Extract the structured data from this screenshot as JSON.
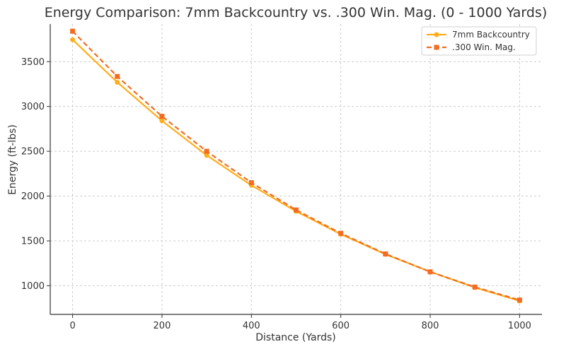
{
  "chart_data": {
    "type": "line",
    "title": "Energy Comparison: 7mm Backcountry vs. .300 Win. Mag. (0 - 1000 Yards)",
    "xlabel": "Distance (Yards)",
    "ylabel": "Energy (ft-lbs)",
    "x": [
      0,
      100,
      200,
      300,
      400,
      500,
      600,
      700,
      800,
      900,
      1000
    ],
    "xlim": [
      -50,
      1050
    ],
    "ylim": [
      680,
      3920
    ],
    "xticks": [
      0,
      200,
      400,
      600,
      800,
      1000
    ],
    "yticks": [
      1000,
      1500,
      2000,
      2500,
      3000,
      3500
    ],
    "grid": true,
    "legend_position": "top-right",
    "series": [
      {
        "name": "7mm Backcountry",
        "color": "#ffae1a",
        "line_style": "solid",
        "marker": "circle",
        "values": [
          3745,
          3270,
          2840,
          2455,
          2120,
          1830,
          1575,
          1350,
          1155,
          980,
          830
        ]
      },
      {
        "name": ".300 Win. Mag.",
        "color": "#f26c22",
        "line_style": "dashed",
        "marker": "square",
        "values": [
          3840,
          3335,
          2890,
          2500,
          2150,
          1845,
          1585,
          1355,
          1155,
          985,
          840
        ]
      }
    ]
  }
}
